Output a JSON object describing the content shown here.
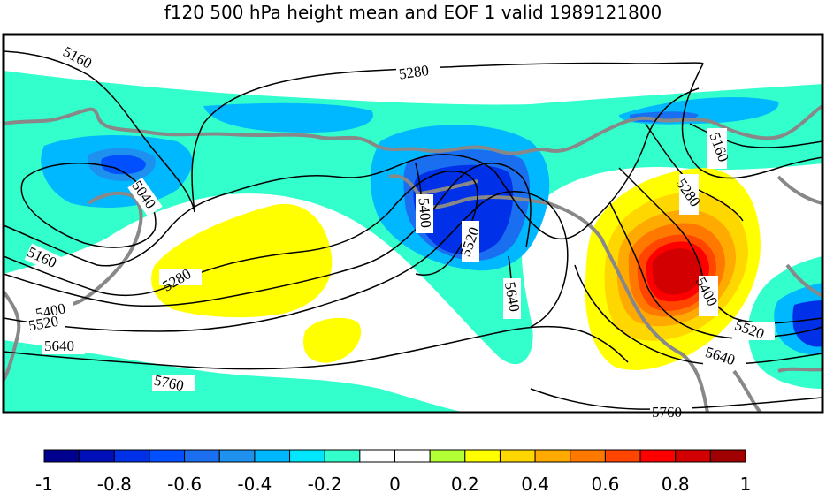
{
  "title": "f120 500 hPa height mean and EOF 1 valid 1989121800",
  "colorbar": {
    "colors": [
      "#00008f",
      "#0010b8",
      "#0030e8",
      "#0050ff",
      "#1a6ef0",
      "#1e90ee",
      "#00b8ff",
      "#00e6ff",
      "#33ffcc",
      "#ffffff",
      "#ffffff",
      "#b4ff33",
      "#ffff00",
      "#ffd700",
      "#ffaa00",
      "#ff7800",
      "#ff4500",
      "#ff0000",
      "#d20000",
      "#a00000"
    ],
    "ticks": [
      "-1",
      "-0.8",
      "-0.6",
      "-0.4",
      "-0.2",
      "0",
      "0.2",
      "0.4",
      "0.6",
      "0.8",
      "1"
    ]
  },
  "contour_labels": [
    {
      "text": "5160"
    },
    {
      "text": "5280"
    },
    {
      "text": "5040"
    },
    {
      "text": "5160"
    },
    {
      "text": "5400"
    },
    {
      "text": "5520"
    },
    {
      "text": "5640"
    },
    {
      "text": "5280"
    },
    {
      "text": "5760"
    },
    {
      "text": "5400"
    },
    {
      "text": "5520"
    },
    {
      "text": "5640"
    },
    {
      "text": "5160"
    },
    {
      "text": "5280"
    },
    {
      "text": "5400"
    },
    {
      "text": "5520"
    },
    {
      "text": "5640"
    },
    {
      "text": "5760"
    }
  ]
}
